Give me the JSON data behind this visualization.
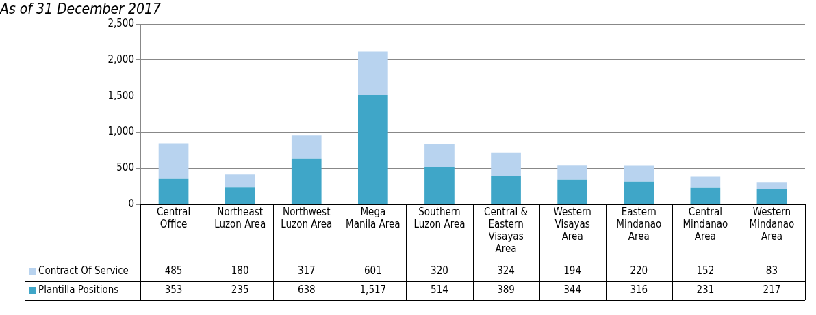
{
  "chart_data": {
    "type": "bar",
    "title": "As of 31 December 2017",
    "stacked": true,
    "grid": "y",
    "legend": "bottom",
    "categories": [
      "Central Office",
      "Northeast Luzon Area",
      "Northwest Luzon Area",
      "Mega Manila Area",
      "Southern Luzon Area",
      "Central & Eastern Visayas Area",
      "Western Visayas Area",
      "Eastern Mindanao Area",
      "Central Mindanao Area",
      "Western Mindanao Area"
    ],
    "ylim": [
      0,
      2500
    ],
    "yticks": [
      {
        "value": 0,
        "label": "0"
      },
      {
        "value": 500,
        "label": "500"
      },
      {
        "value": 1000,
        "label": "1,000"
      },
      {
        "value": 1500,
        "label": "1,500"
      },
      {
        "value": 2000,
        "label": "2,000"
      },
      {
        "value": 2500,
        "label": "2,500"
      }
    ],
    "series": [
      {
        "name": "Plantilla Positions",
        "color": "#3fa6c8",
        "values": [
          353,
          235,
          638,
          1517,
          514,
          389,
          344,
          316,
          231,
          217
        ],
        "value_labels": [
          "353",
          "235",
          "638",
          "1,517",
          "514",
          "389",
          "344",
          "316",
          "231",
          "217"
        ]
      },
      {
        "name": "Contract Of Service",
        "color": "#b8d3ef",
        "values": [
          485,
          180,
          317,
          601,
          320,
          324,
          194,
          220,
          152,
          83
        ],
        "value_labels": [
          "485",
          "180",
          "317",
          "601",
          "320",
          "324",
          "194",
          "220",
          "152",
          "83"
        ]
      }
    ]
  }
}
